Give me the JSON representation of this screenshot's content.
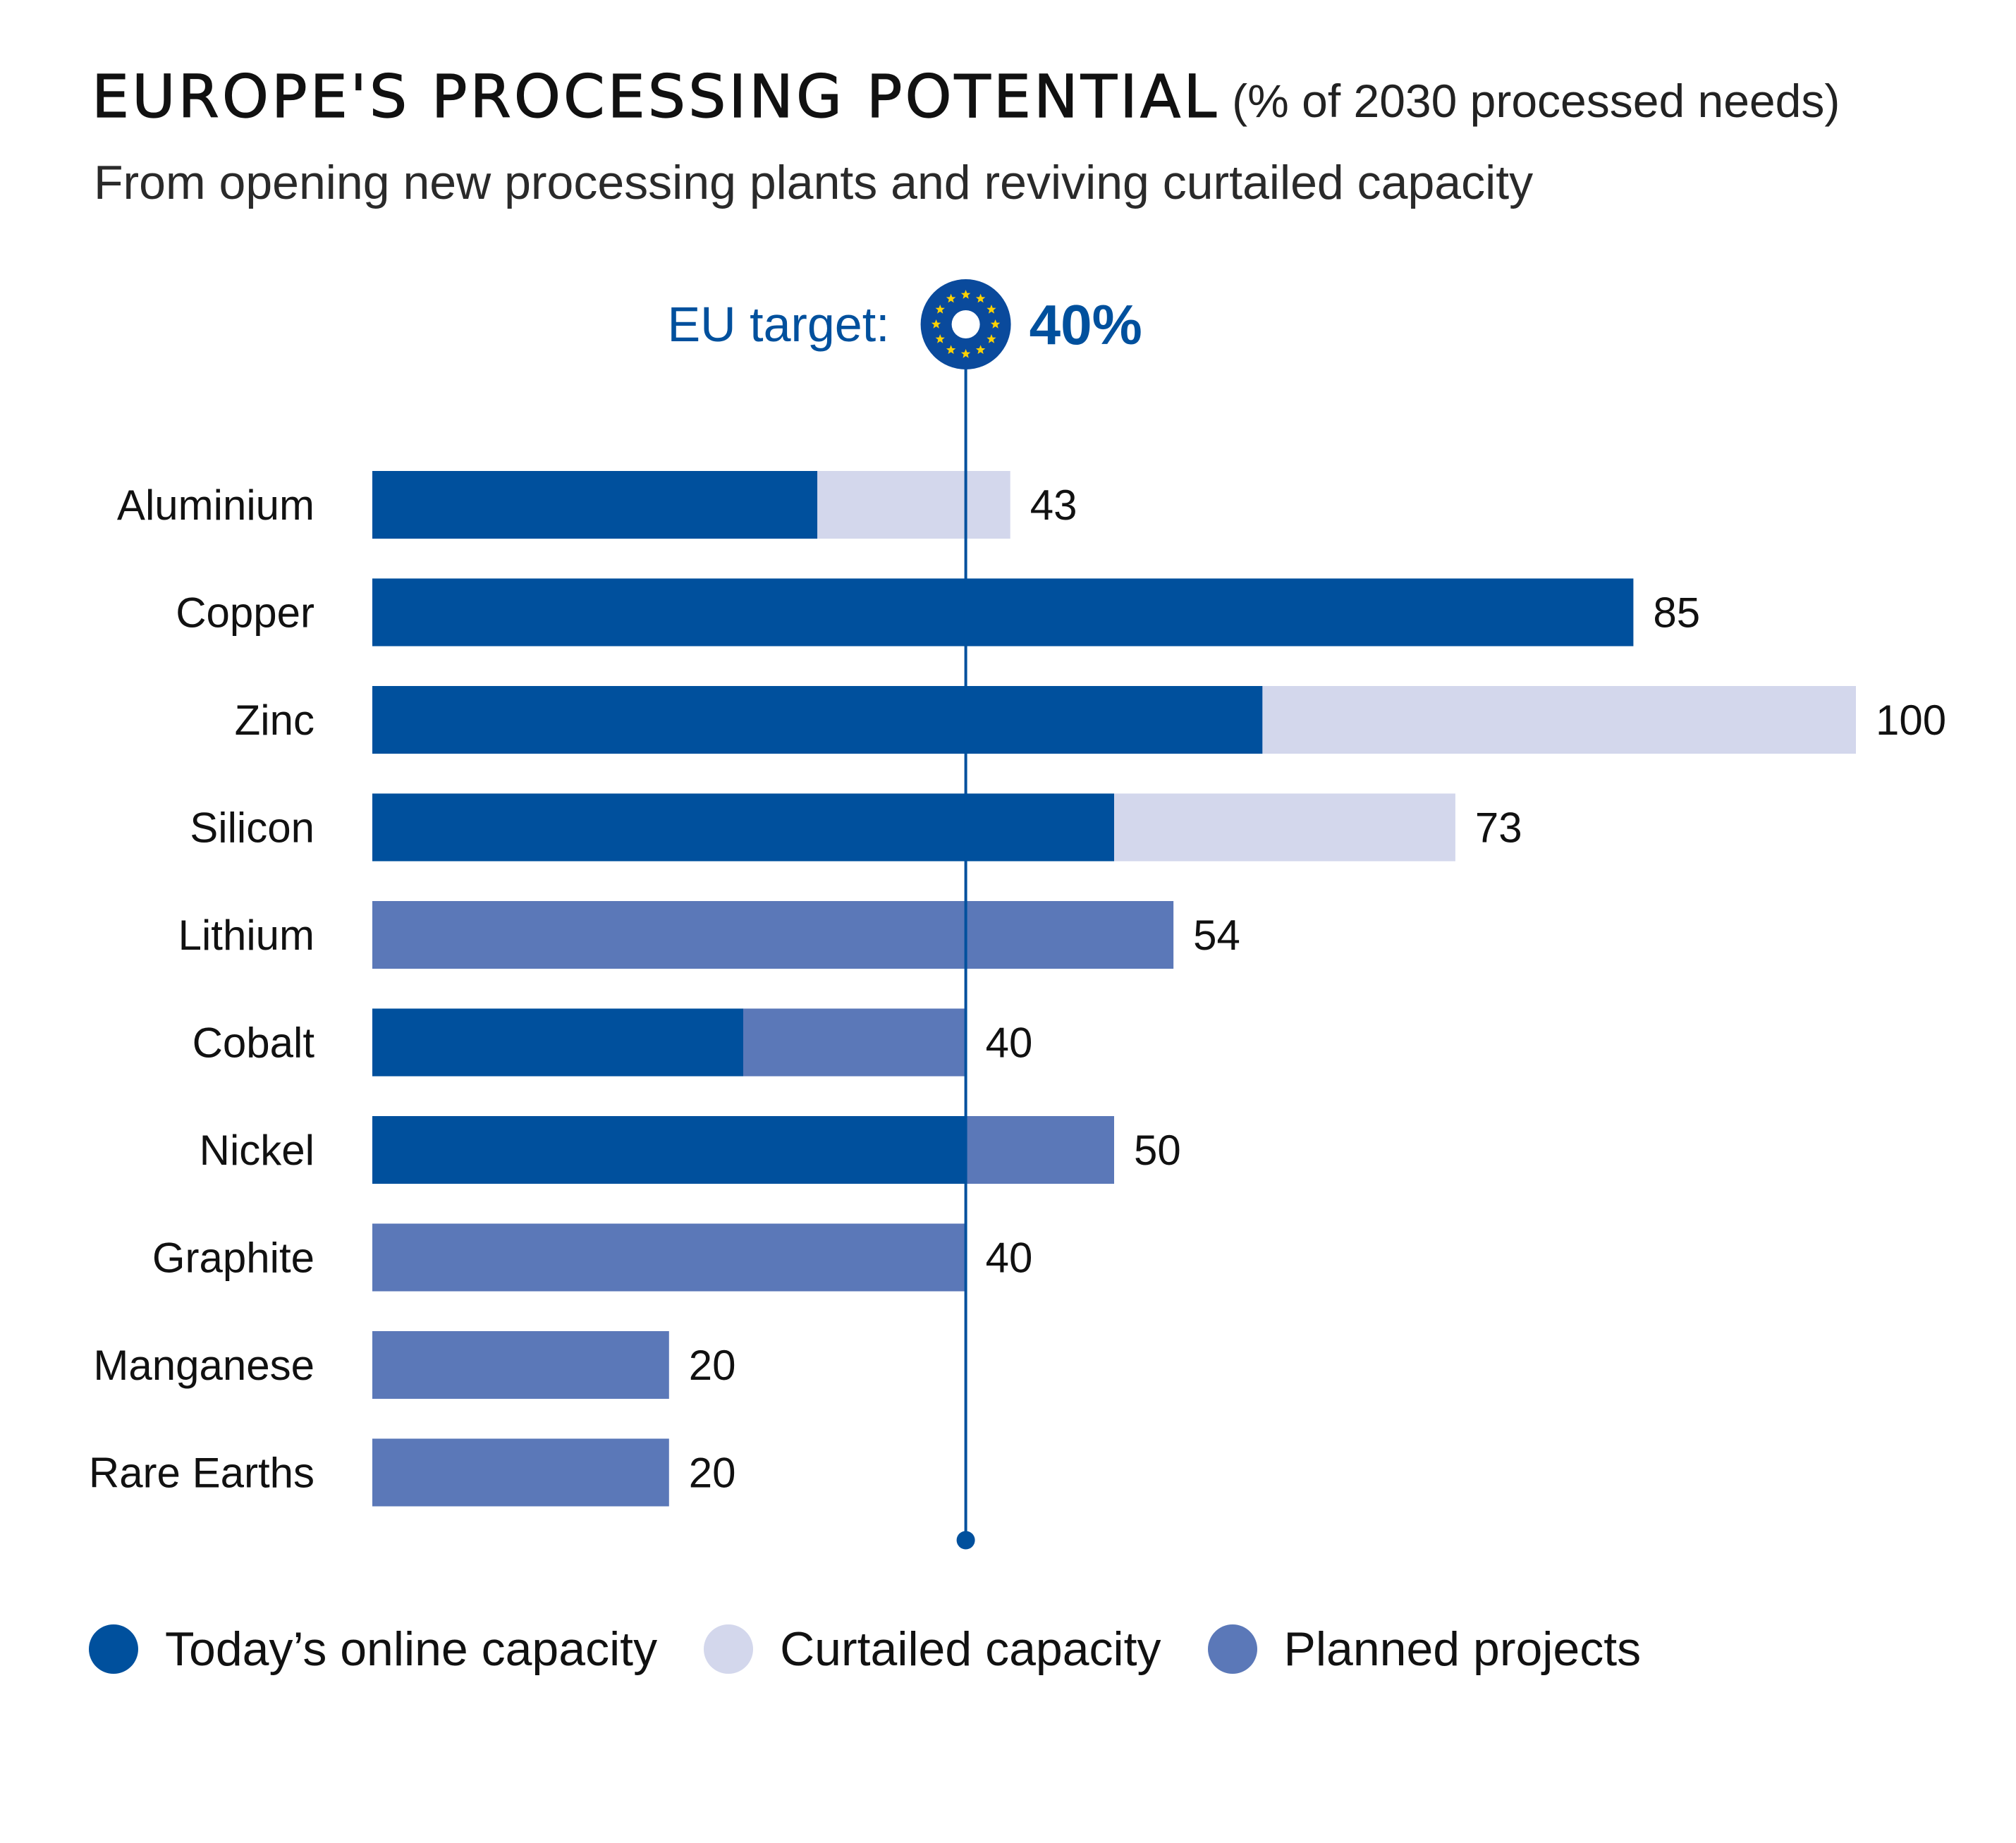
{
  "title": "EUROPE'S PROCESSING POTENTIAL",
  "title_unit": "(% of 2030 processed needs)",
  "subtitle": "From opening new processing plants and reviving curtailed capacity",
  "target": {
    "label": "EU target:",
    "value_text": "40%",
    "value": 40,
    "icon": "eu-flag-icon"
  },
  "colors": {
    "online": "#00509d",
    "curtailed": "#d3d7ec",
    "planned": "#5b78b8",
    "target_line": "#00509d"
  },
  "legend": [
    {
      "key": "online",
      "label": "Today’s online capacity"
    },
    {
      "key": "curtailed",
      "label": "Curtailed capacity"
    },
    {
      "key": "planned",
      "label": "Planned projects"
    }
  ],
  "chart_data": {
    "type": "bar",
    "orientation": "horizontal",
    "stacked": true,
    "title": "EUROPE'S PROCESSING POTENTIAL (% of 2030 processed needs)",
    "subtitle": "From opening new processing plants and reviving curtailed capacity",
    "xlim": [
      0,
      100
    ],
    "grid": false,
    "legend_position": "bottom",
    "reference_line": {
      "value": 40,
      "label": "EU target: 40%"
    },
    "categories": [
      "Aluminium",
      "Copper",
      "Zinc",
      "Silicon",
      "Lithium",
      "Cobalt",
      "Nickel",
      "Graphite",
      "Manganese",
      "Rare Earths"
    ],
    "series": [
      {
        "name": "Today’s online capacity",
        "key": "online",
        "values": [
          30,
          85,
          60,
          50,
          0,
          25,
          40,
          0,
          0,
          0
        ]
      },
      {
        "name": "Curtailed capacity",
        "key": "curtailed",
        "values": [
          13,
          0,
          40,
          23,
          0,
          0,
          0,
          0,
          0,
          0
        ]
      },
      {
        "name": "Planned projects",
        "key": "planned",
        "values": [
          0,
          0,
          0,
          0,
          54,
          15,
          10,
          40,
          20,
          20
        ]
      }
    ],
    "totals": [
      43,
      85,
      100,
      73,
      54,
      40,
      50,
      40,
      20,
      20
    ]
  }
}
